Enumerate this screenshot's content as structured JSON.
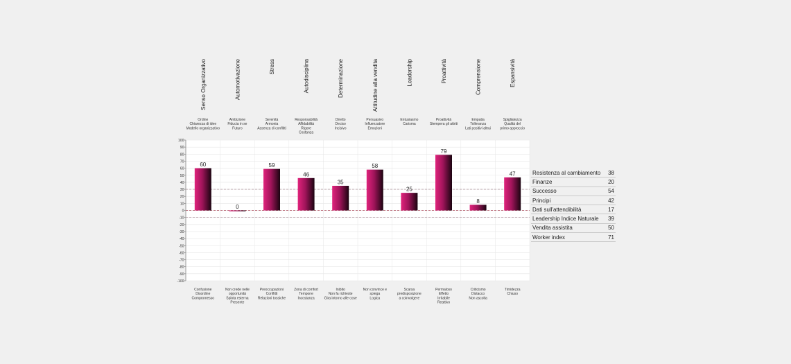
{
  "chart_data": {
    "type": "bar",
    "categories": [
      {
        "title": "Senso Organizzativo",
        "top": [
          "Ordine",
          "Chiarezza di idee",
          "Modello organizzativo"
        ],
        "bottom": [
          "Confusione",
          "Disordine",
          "Compromesso"
        ],
        "value": 60
      },
      {
        "title": "Automotivazione",
        "top": [
          "Ambizione",
          "Fiducia in se",
          "Futuro"
        ],
        "bottom": [
          "Non crede nelle",
          "opportunità",
          "Spinta esterna",
          "Presente"
        ],
        "value": 0
      },
      {
        "title": "Stress",
        "top": [
          "Serenità",
          "Armonia",
          "Assenza di conflitti"
        ],
        "bottom": [
          "Preoccupazioni",
          "Conflitti",
          "Relazioni tossiche"
        ],
        "value": 59
      },
      {
        "title": "Autodisciplina",
        "top": [
          "Responsabilità",
          "Affidabilità",
          "Rigore",
          "Costanza"
        ],
        "bottom": [
          "Zona di comfort",
          "Tempone",
          "Incostanza"
        ],
        "value": 46
      },
      {
        "title": "Determinazione",
        "top": [
          "Diretto",
          "Deciso",
          "Incisivo"
        ],
        "bottom": [
          "Inibito",
          "Non fa richieste",
          "Gira intorno alle cose"
        ],
        "value": 35
      },
      {
        "title": "Attitudine alla vendita",
        "top": [
          "Persuasivo",
          "Influenzatore",
          "Emozioni"
        ],
        "bottom": [
          "Non convince e",
          "spiega",
          "Logica"
        ],
        "value": 58
      },
      {
        "title": "Leadership",
        "top": [
          "Entusiasmo",
          "Carisma"
        ],
        "bottom": [
          "Scarsa",
          "predisposizione",
          "a coinvolgere"
        ],
        "value": 25
      },
      {
        "title": "Proattività",
        "top": [
          "Proattività",
          "Stempera gli attriti"
        ],
        "bottom": [
          "Permaloso",
          "Effetto",
          "Irritabile",
          "Reattivo"
        ],
        "value": 79
      },
      {
        "title": "Comprensione",
        "top": [
          "Empatia",
          "Tolleranza",
          "Lati positivi altrui"
        ],
        "bottom": [
          "Criticismo",
          "Distacco",
          "Non ascolta"
        ],
        "value": 8
      },
      {
        "title": "Espansività",
        "top": [
          "Spigliatezza",
          "Qualità del",
          "primo approccio"
        ],
        "bottom": [
          "Timidezza",
          "Chiuso"
        ],
        "value": 47
      }
    ],
    "ylim": [
      -100,
      100
    ],
    "yticks": [
      100,
      90,
      80,
      70,
      60,
      50,
      40,
      30,
      20,
      10,
      0,
      -10,
      -20,
      -30,
      -40,
      -50,
      -60,
      -70,
      -80,
      -90,
      -100
    ],
    "reference_lines": [
      30,
      0,
      -10
    ],
    "grid": true,
    "colors": {
      "bar_light": "#e0237c",
      "bar_dark": "#1a0410",
      "ref_line": "#c06070",
      "grid": "#e6e6e6",
      "background": "#f0f0f0",
      "plot_bg": "#ffffff"
    }
  },
  "side_table": [
    {
      "label": "Resistenza al cambiamento",
      "value": "38"
    },
    {
      "label": "Finanze",
      "value": "20"
    },
    {
      "label": "Successo",
      "value": "54"
    },
    {
      "label": "Principi",
      "value": "42"
    },
    {
      "label": "Dati sull'attendibilità",
      "value": "17"
    },
    {
      "label": "Leadership Indice Naturale",
      "value": "39"
    },
    {
      "label": "Vendita assistita",
      "value": "50"
    },
    {
      "label": "Worker index",
      "value": "71"
    }
  ]
}
